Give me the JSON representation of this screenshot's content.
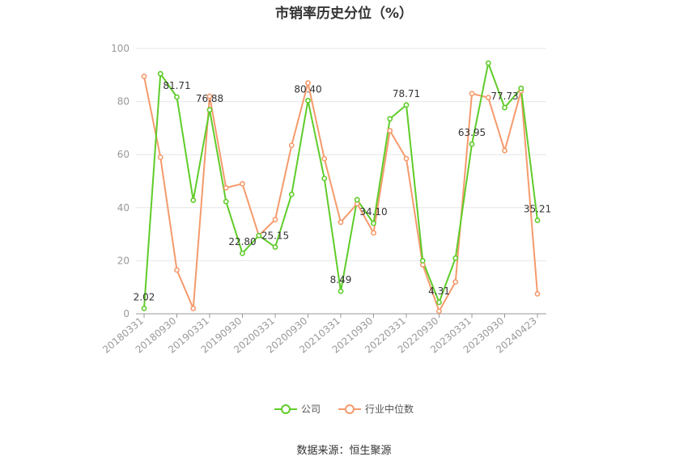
{
  "chart_data": {
    "type": "line",
    "title": "市销率历史分位（%）",
    "ylim": [
      0,
      100
    ],
    "yticks": [
      0,
      20,
      40,
      60,
      80,
      100
    ],
    "x_tick_labels": [
      "20180331",
      "20180930",
      "20190331",
      "20190930",
      "20200331",
      "20200930",
      "20210331",
      "20210930",
      "20220331",
      "20220930",
      "20230331",
      "20230930",
      "20240423"
    ],
    "series": [
      {
        "name": "公司",
        "color": "#5fcc29",
        "values": [
          2.02,
          90.5,
          81.71,
          42.8,
          76.88,
          42.3,
          22.8,
          29.5,
          25.15,
          45.0,
          80.4,
          51.0,
          8.49,
          43.0,
          34.1,
          73.5,
          78.71,
          20.0,
          4.31,
          21.0,
          63.95,
          94.5,
          77.73,
          85.0,
          35.21
        ],
        "labels": [
          "2.02",
          null,
          "81.71",
          null,
          "76.88",
          null,
          "22.80",
          null,
          "25.15",
          null,
          "80.40",
          null,
          "8.49",
          null,
          "34.10",
          null,
          "78.71",
          null,
          "4.31",
          null,
          "63.95",
          null,
          "77.73",
          null,
          "35.21"
        ]
      },
      {
        "name": "行业中位数",
        "color": "#f59a6c",
        "values": [
          89.5,
          59.0,
          16.5,
          2.0,
          82.0,
          47.5,
          49.0,
          29.5,
          35.5,
          63.5,
          87.0,
          58.5,
          34.5,
          41.5,
          30.5,
          69.0,
          58.5,
          18.5,
          1.0,
          12.0,
          83.0,
          81.5,
          61.5,
          84.0,
          7.5
        ]
      }
    ]
  },
  "legend": {
    "company": "公司",
    "industry": "行业中位数"
  },
  "source": "数据来源：恒生聚源",
  "colors": {
    "grid": "#e6e6e6",
    "axis": "#999999",
    "tick_text": "#999999",
    "label_text": "#333333"
  }
}
